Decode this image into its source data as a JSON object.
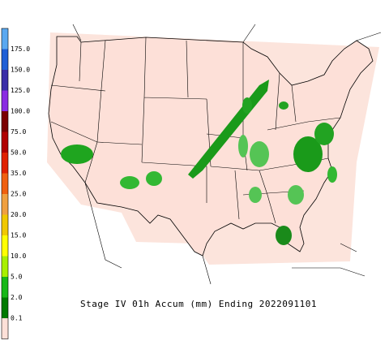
{
  "title": "Stage IV 01h Accum (mm) Ending 2022091101",
  "legend": {
    "labels": [
      "175.0",
      "150.0",
      "125.0",
      "100.0",
      "75.0",
      "50.0",
      "35.0",
      "25.0",
      "20.0",
      "15.0",
      "10.0",
      "5.0",
      "2.0",
      "0.1"
    ],
    "colors": [
      "#5aa8f0",
      "#1f5fd6",
      "#3a2ea8",
      "#8a2be2",
      "#7a0000",
      "#b00000",
      "#e02000",
      "#f06010",
      "#f0a040",
      "#f0c800",
      "#ffff00",
      "#a8f000",
      "#18b818",
      "#007a00",
      "#fde0d8"
    ]
  }
}
